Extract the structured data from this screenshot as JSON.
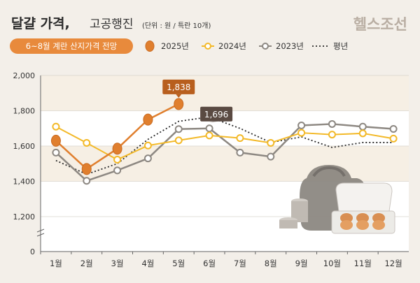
{
  "header": {
    "title": "달걀 가격,",
    "title2": "고공행진",
    "unit_note": "(단위 : 원 / 특란 10개)",
    "brand": "헬스조선",
    "subtitle_badge": "6~8월 계란 산지가격 전망"
  },
  "colors": {
    "s2025": "#e07f2e",
    "s2024": "#f3b928",
    "s2023": "#8d8882",
    "avg": "#2b2b2b",
    "badge": "#e88a3c",
    "callout2025": "#b85f1e",
    "callout2023": "#5a4a42"
  },
  "chart_data": {
    "type": "line",
    "categories": [
      "1월",
      "2월",
      "3월",
      "4월",
      "5월",
      "6월",
      "7월",
      "8월",
      "9월",
      "10월",
      "11월",
      "12월"
    ],
    "ylim": [
      0,
      2000
    ],
    "yticks": [
      "0",
      "1,200",
      "1,400",
      "1,600",
      "1,800",
      "2,000"
    ],
    "series": [
      {
        "name": "2025년",
        "values": [
          1630,
          1470,
          1585,
          1750,
          1838,
          null,
          null,
          null,
          null,
          null,
          null,
          null
        ]
      },
      {
        "name": "2024년",
        "values": [
          1710,
          1618,
          1523,
          1603,
          1632,
          1660,
          1645,
          1618,
          1675,
          1665,
          1672,
          1642
        ]
      },
      {
        "name": "2023년",
        "values": [
          1563,
          1403,
          1462,
          1530,
          1696,
          1700,
          1563,
          1540,
          1717,
          1725,
          1710,
          1697
        ]
      },
      {
        "name": "평년",
        "values": [
          1518,
          1440,
          1500,
          1638,
          1740,
          1765,
          1700,
          1620,
          1652,
          1592,
          1620,
          1620
        ]
      }
    ],
    "callouts": [
      {
        "series": "2025년",
        "value": "1,838"
      },
      {
        "series": "2023년",
        "value": "1,696"
      }
    ]
  }
}
